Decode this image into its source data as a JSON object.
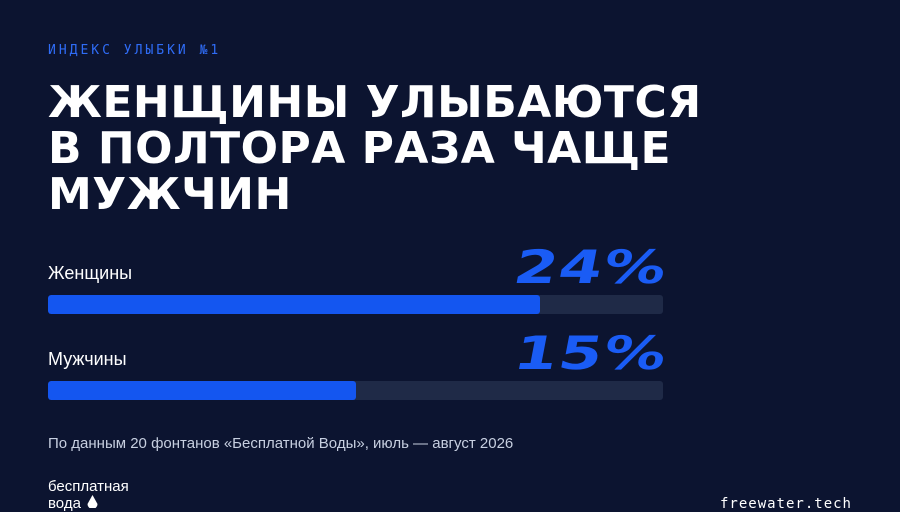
{
  "header": {
    "eyebrow": "ИНДЕКС УЛЫБКИ №1",
    "headline": "ЖЕНЩИНЫ УЛЫБАЮТСЯ В ПОЛТОРА РАЗА ЧАЩЕ МУЖЧИН"
  },
  "stats": [
    {
      "label": "Женщины",
      "value_text": "24%",
      "fill_fraction": 0.8
    },
    {
      "label": "Мужчины",
      "value_text": "15%",
      "fill_fraction": 0.5
    }
  ],
  "footnote": "По данным 20 фонтанов «Бесплатной Воды», июль — август 2026",
  "footer": {
    "logo_line1": "бесплатная",
    "logo_line2": "вода",
    "logo_icon": "water-drop-icon",
    "brand": "freewater.tech"
  },
  "colors": {
    "background": "#0c1430",
    "accent": "#1a5cf5",
    "bar_fill": "#1456f0",
    "bar_track": "#1f2a47",
    "eyebrow": "#2f6cf6"
  }
}
